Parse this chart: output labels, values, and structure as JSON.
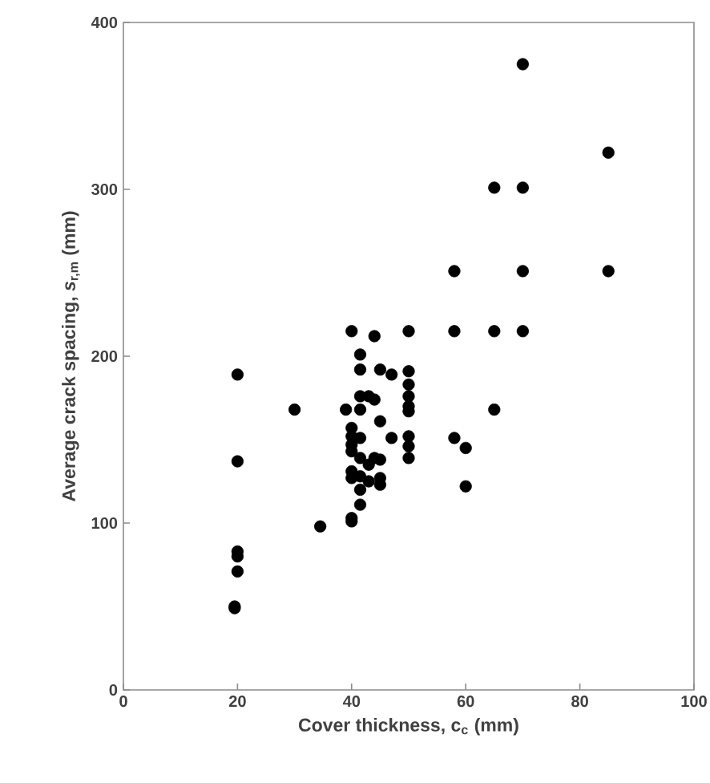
{
  "chart_data": {
    "type": "scatter",
    "xlabel": "Cover thickness, c$_{c}$ (mm)",
    "ylabel": "Average crack spacing, *s*$_{r,m}$ (mm)",
    "xlim": [
      0,
      100
    ],
    "ylim": [
      0,
      400
    ],
    "xticks": [
      0,
      20,
      40,
      60,
      80,
      100
    ],
    "yticks": [
      0,
      100,
      200,
      300,
      400
    ],
    "grid": false,
    "marker": "circle",
    "series": [
      {
        "color": "#000000",
        "x": [
          20,
          20,
          20,
          20,
          20,
          19.5,
          19.5,
          30,
          34.5,
          39,
          40,
          40,
          40,
          40,
          40,
          40,
          40,
          40,
          40,
          41.5,
          41.5,
          41.5,
          41.5,
          41.5,
          41.5,
          41.5,
          41.5,
          41.5,
          43,
          43,
          43,
          44,
          44,
          44,
          45,
          45,
          45,
          45,
          45,
          47,
          47,
          50,
          50,
          50,
          50,
          50,
          50,
          50,
          50,
          50,
          58,
          58,
          58,
          60,
          60,
          65,
          65,
          65,
          70,
          70,
          70,
          70,
          85,
          85
        ],
        "values": [
          189,
          137,
          83,
          80,
          71,
          50,
          49,
          168,
          98,
          168,
          215,
          101,
          103,
          157,
          152,
          147,
          143,
          131,
          127,
          201,
          192,
          176,
          168,
          151,
          139,
          128,
          120,
          111,
          176,
          135,
          125,
          212,
          174,
          139,
          192,
          161,
          138,
          127,
          123,
          189,
          151,
          215,
          191,
          183,
          176,
          170,
          167,
          152,
          146,
          139,
          251,
          215,
          151,
          145,
          122,
          301,
          215,
          168,
          375,
          301,
          251,
          215,
          322,
          251
        ]
      }
    ]
  }
}
